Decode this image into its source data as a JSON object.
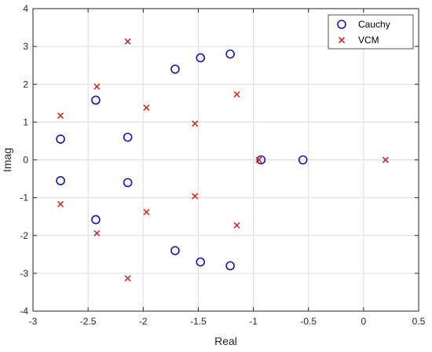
{
  "chart_data": {
    "type": "scatter",
    "xlabel": "Real",
    "ylabel": "Imag",
    "xlim": [
      -3,
      0.5
    ],
    "ylim": [
      -4,
      4
    ],
    "x_ticks": [
      "-3",
      "-2.5",
      "-2",
      "-1.5",
      "-1",
      "-0.5",
      "0",
      "0.5"
    ],
    "y_ticks": [
      "-4",
      "-3",
      "-2",
      "-1",
      "0",
      "1",
      "2",
      "3",
      "4"
    ],
    "grid": true,
    "legend_position": "top-right",
    "series": [
      {
        "name": "Cauchy",
        "marker": "circle",
        "color": "#1515b0",
        "points": [
          [
            -2.75,
            0.55
          ],
          [
            -2.75,
            -0.55
          ],
          [
            -2.43,
            1.58
          ],
          [
            -2.43,
            -1.58
          ],
          [
            -2.14,
            0.6
          ],
          [
            -2.14,
            -0.6
          ],
          [
            -1.71,
            2.4
          ],
          [
            -1.71,
            -2.4
          ],
          [
            -1.48,
            2.7
          ],
          [
            -1.48,
            -2.7
          ],
          [
            -1.21,
            2.8
          ],
          [
            -1.21,
            -2.8
          ],
          [
            -0.93,
            0.0
          ],
          [
            -0.55,
            0.0
          ]
        ]
      },
      {
        "name": "VCM",
        "marker": "x",
        "color": "#d62728",
        "points": [
          [
            -2.75,
            1.17
          ],
          [
            -2.75,
            -1.17
          ],
          [
            -2.42,
            1.94
          ],
          [
            -2.42,
            -1.94
          ],
          [
            -2.14,
            3.13
          ],
          [
            -2.14,
            -3.13
          ],
          [
            -1.97,
            1.38
          ],
          [
            -1.97,
            -1.38
          ],
          [
            -1.53,
            0.96
          ],
          [
            -1.53,
            -0.96
          ],
          [
            -1.15,
            1.73
          ],
          [
            -1.15,
            -1.73
          ],
          [
            -0.95,
            0.0
          ],
          [
            0.2,
            0.0
          ]
        ]
      }
    ]
  }
}
